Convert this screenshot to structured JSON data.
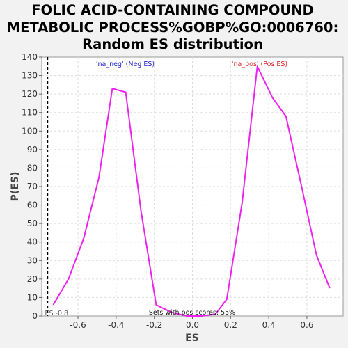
{
  "chart_data": {
    "type": "line",
    "title_lines": [
      "FOLIC ACID-CONTAINING COMPOUND",
      "METABOLIC PROCESS%GOBP%GO:0006760:",
      "Random ES distribution"
    ],
    "xlabel": "ES",
    "ylabel": "P(ES)",
    "xlim": [
      -0.79,
      0.79
    ],
    "ylim": [
      0,
      140
    ],
    "xticks": [
      -0.6,
      -0.4,
      -0.2,
      0.0,
      0.2,
      0.4,
      0.6
    ],
    "xtick_labels": [
      "-0.6",
      "-0.4",
      "-0.2",
      "0.0",
      "0.2",
      "0.4",
      "0.6"
    ],
    "yticks": [
      0,
      10,
      20,
      30,
      40,
      50,
      60,
      70,
      80,
      90,
      100,
      110,
      120,
      130,
      140
    ],
    "grid": true,
    "series": [
      {
        "color": "#ee22ee",
        "x": [
          -0.73,
          -0.65,
          -0.57,
          -0.49,
          -0.42,
          -0.35,
          -0.27,
          -0.19,
          -0.11,
          -0.03,
          0.05,
          0.12,
          0.18,
          0.26,
          0.34,
          0.42,
          0.49,
          0.57,
          0.65,
          0.72
        ],
        "y": [
          6,
          20,
          42,
          75,
          123,
          121,
          57,
          6,
          2,
          0,
          0,
          1,
          9,
          61,
          135,
          118,
          108,
          71,
          33,
          15
        ]
      }
    ],
    "reference_line": {
      "x": -0.76,
      "label": "LES -0.8"
    },
    "annotations": {
      "neg_label": "'na_neg' (Neg ES)",
      "pos_label": "'na_pos' (Pos ES)",
      "neg_color": "#2222cc",
      "pos_color": "#dd2222",
      "footer": "Sets with pos scores: 55%"
    }
  }
}
